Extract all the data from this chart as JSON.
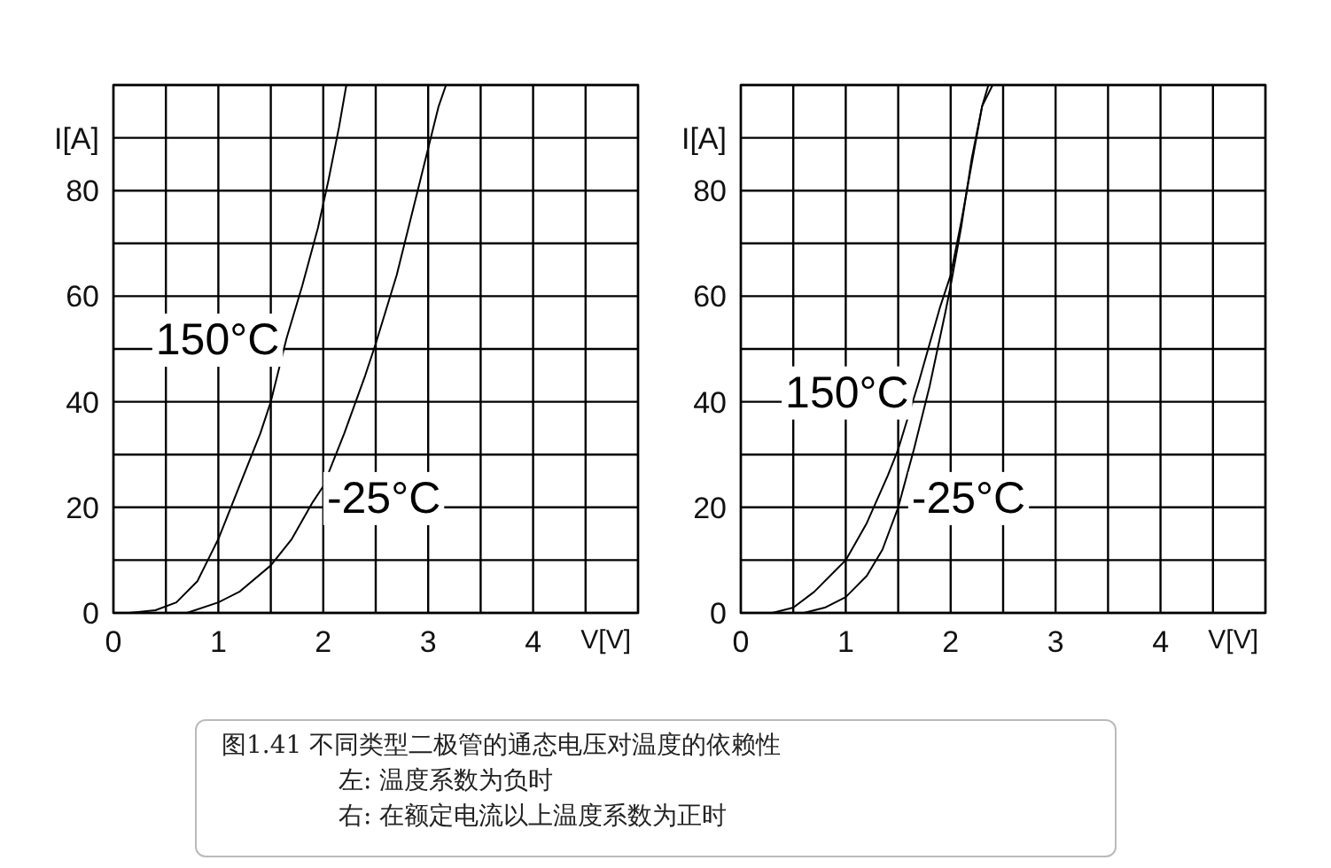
{
  "chart_data": [
    {
      "type": "line",
      "xlabel": "V[V]",
      "ylabel": "I[A]",
      "xlim": [
        0,
        5
      ],
      "ylim": [
        0,
        100
      ],
      "xticks": [
        0,
        {
          "value": 0.5,
          "label": null
        },
        1,
        {
          "value": 1.5,
          "label": null
        },
        2,
        {
          "value": 2.5,
          "label": null
        },
        3,
        {
          "value": 3.5,
          "label": null
        },
        4,
        {
          "value": 4.5,
          "label": null
        },
        {
          "value": 5,
          "label": null
        }
      ],
      "yticks": [
        0,
        {
          "value": 10,
          "label": null
        },
        20,
        {
          "value": 30,
          "label": null
        },
        40,
        {
          "value": 50,
          "label": null
        },
        60,
        {
          "value": 70,
          "label": null
        },
        80,
        {
          "value": 90,
          "label": null
        },
        {
          "value": 100,
          "label": null
        }
      ],
      "grid": true,
      "series": [
        {
          "name": "150°C",
          "color": "#000000",
          "x": [
            0.15,
            0.4,
            0.6,
            0.8,
            0.9,
            1.0,
            1.2,
            1.4,
            1.5,
            1.65,
            1.8,
            1.95,
            2.05,
            2.15,
            2.22
          ],
          "values": [
            0,
            0.5,
            2,
            6,
            10,
            14,
            24,
            34,
            40,
            52,
            62,
            73,
            82,
            92,
            100
          ]
        },
        {
          "name": "-25°C",
          "color": "#000000",
          "x": [
            0.7,
            1.0,
            1.2,
            1.5,
            1.7,
            1.9,
            2.0,
            2.2,
            2.4,
            2.5,
            2.7,
            2.9,
            3.0,
            3.1,
            3.17
          ],
          "values": [
            0,
            2,
            4,
            9,
            14,
            21,
            24,
            34,
            45,
            51,
            64,
            80,
            88,
            96,
            100
          ]
        }
      ],
      "annotations": [
        "图1.41  不同类型二极管的通态电压对温度的依赖性",
        "左: 温度系数为负时",
        "右: 在额定电流以上温度系数为正时"
      ]
    },
    {
      "type": "line",
      "xlabel": "V[V]",
      "ylabel": "I[A]",
      "xlim": [
        0,
        5
      ],
      "ylim": [
        0,
        100
      ],
      "xticks": [
        0,
        {
          "value": 0.5,
          "label": null
        },
        1,
        {
          "value": 1.5,
          "label": null
        },
        2,
        {
          "value": 2.5,
          "label": null
        },
        3,
        {
          "value": 3.5,
          "label": null
        },
        4,
        {
          "value": 4.5,
          "label": null
        },
        {
          "value": 5,
          "label": null
        }
      ],
      "yticks": [
        0,
        {
          "value": 10,
          "label": null
        },
        20,
        {
          "value": 30,
          "label": null
        },
        40,
        {
          "value": 50,
          "label": null
        },
        60,
        {
          "value": 70,
          "label": null
        },
        80,
        {
          "value": 90,
          "label": null
        },
        {
          "value": 100,
          "label": null
        }
      ],
      "grid": true,
      "series": [
        {
          "name": "150°C",
          "color": "#000000",
          "x": [
            0.3,
            0.5,
            0.7,
            0.9,
            1.0,
            1.2,
            1.4,
            1.5,
            1.7,
            1.9,
            2.0,
            2.1,
            2.2,
            2.3,
            2.36
          ],
          "values": [
            0,
            1,
            4,
            8,
            10,
            17,
            26,
            31,
            44,
            58,
            64,
            74,
            85,
            96,
            100
          ]
        },
        {
          "name": "-25°C",
          "color": "#000000",
          "x": [
            0.6,
            0.8,
            1.0,
            1.2,
            1.35,
            1.5,
            1.65,
            1.8,
            1.95,
            2.0,
            2.1,
            2.2,
            2.3,
            2.4
          ],
          "values": [
            0,
            1,
            3,
            7,
            12,
            20,
            31,
            43,
            57,
            62,
            73,
            86,
            96,
            100
          ]
        }
      ]
    }
  ]
}
